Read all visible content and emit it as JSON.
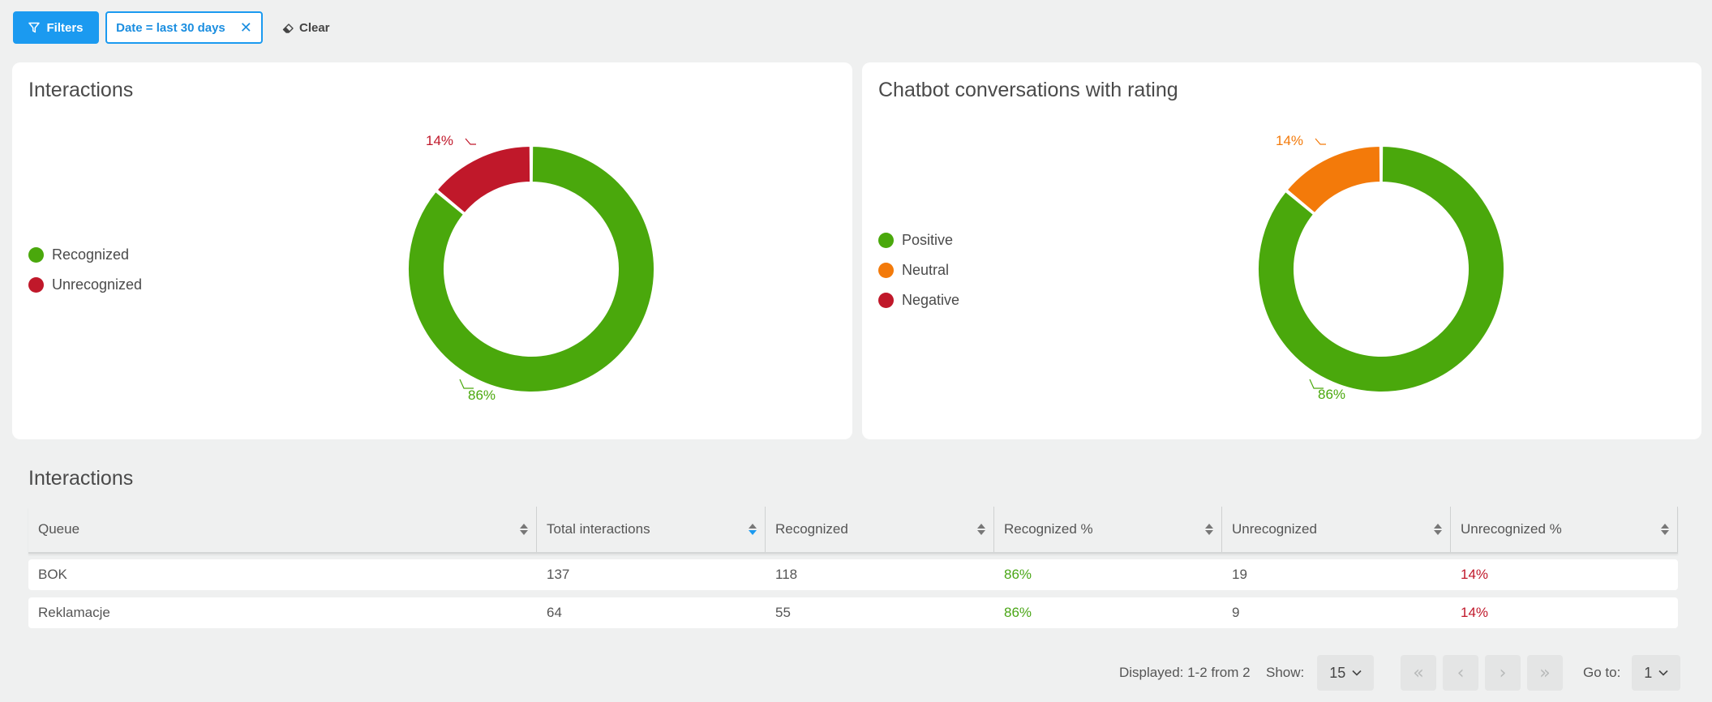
{
  "filters": {
    "filters_button_label": "Filters",
    "chip_label": "Date = last 30 days",
    "chip_close": "✕",
    "clear_label": "Clear"
  },
  "charts": {
    "interactions": {
      "title": "Interactions",
      "legend": [
        {
          "label": "Recognized",
          "color": "#4aa80c"
        },
        {
          "label": "Unrecognized",
          "color": "#c0182a"
        }
      ],
      "slice_labels": {
        "major": "86%",
        "minor": "14%"
      }
    },
    "ratings": {
      "title": "Chatbot conversations with rating",
      "legend": [
        {
          "label": "Positive",
          "color": "#4aa80c"
        },
        {
          "label": "Neutral",
          "color": "#f37a0a"
        },
        {
          "label": "Negative",
          "color": "#c0182a"
        }
      ],
      "slice_labels": {
        "major": "86%",
        "minor": "14%"
      }
    }
  },
  "chart_data": [
    {
      "type": "pie",
      "title": "Interactions",
      "categories": [
        "Recognized",
        "Unrecognized"
      ],
      "values": [
        86,
        14
      ],
      "colors": [
        "#4aa80c",
        "#c0182a"
      ],
      "legend": "left",
      "donut": true
    },
    {
      "type": "pie",
      "title": "Chatbot conversations with rating",
      "categories": [
        "Positive",
        "Neutral",
        "Negative"
      ],
      "values": [
        86,
        14,
        0
      ],
      "colors": [
        "#4aa80c",
        "#f37a0a",
        "#c0182a"
      ],
      "legend": "left",
      "donut": true
    }
  ],
  "table": {
    "title": "Interactions",
    "columns": [
      "Queue",
      "Total interactions",
      "Recognized",
      "Recognized %",
      "Unrecognized",
      "Unrecognized %"
    ],
    "rows": [
      [
        "BOK",
        "137",
        "118",
        "86%",
        "19",
        "14%"
      ],
      [
        "Reklamacje",
        "64",
        "55",
        "86%",
        "9",
        "14%"
      ]
    ]
  },
  "pagination": {
    "displayed": "Displayed: 1-2 from 2",
    "show_label": "Show:",
    "show_value": "15",
    "goto_label": "Go to:",
    "goto_value": "1"
  }
}
